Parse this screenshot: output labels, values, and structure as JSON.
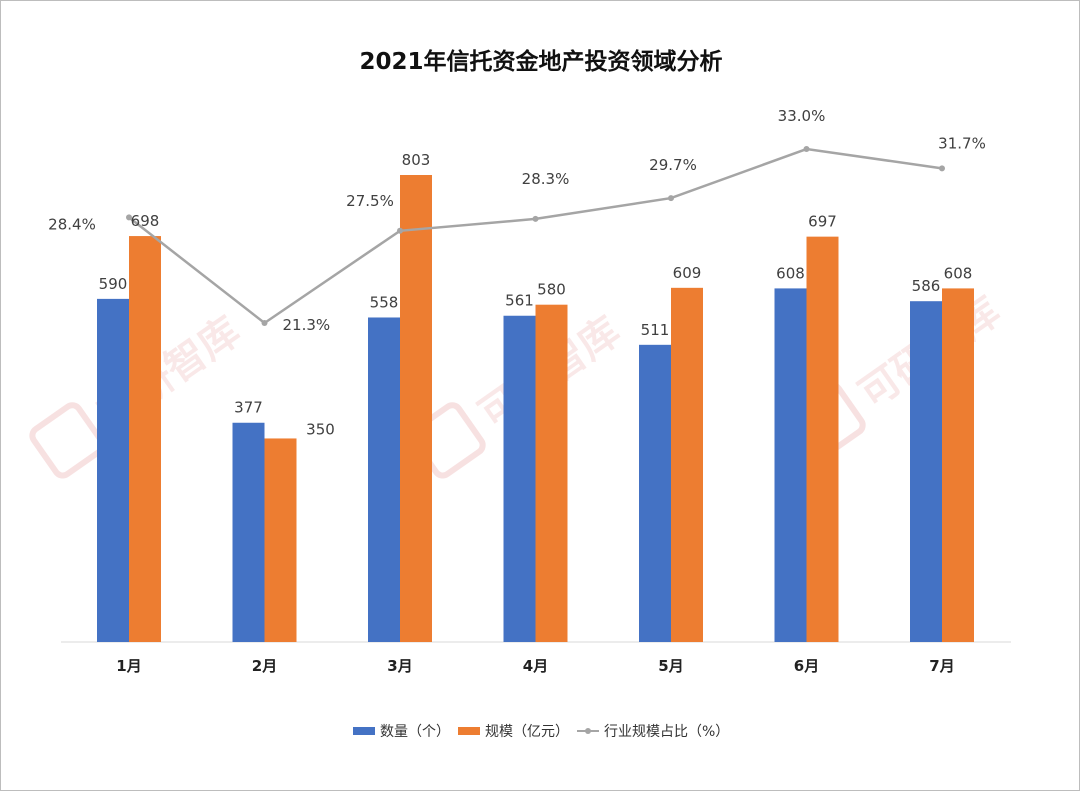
{
  "chart_data": {
    "type": "bar",
    "title": "2021年信托资金地产投资领域分析",
    "categories": [
      "1月",
      "2月",
      "3月",
      "4月",
      "5月",
      "6月",
      "7月"
    ],
    "series": [
      {
        "name": "数量（个）",
        "type": "bar",
        "color": "#4472c4",
        "values": [
          590,
          377,
          558,
          561,
          511,
          608,
          586
        ]
      },
      {
        "name": "规模（亿元）",
        "type": "bar",
        "color": "#ed7d31",
        "values": [
          698,
          350,
          803,
          580,
          609,
          697,
          608
        ]
      },
      {
        "name": "行业规模占比（%）",
        "type": "line",
        "color": "#a5a5a5",
        "values": [
          28.4,
          21.3,
          27.5,
          28.3,
          29.7,
          33.0,
          31.7
        ],
        "label_suffix": "%"
      }
    ],
    "xlabel": "",
    "ylabel": "",
    "ylim": [
      0,
      803
    ],
    "grid": false,
    "legend": "bottom",
    "watermark": "可研智库"
  }
}
